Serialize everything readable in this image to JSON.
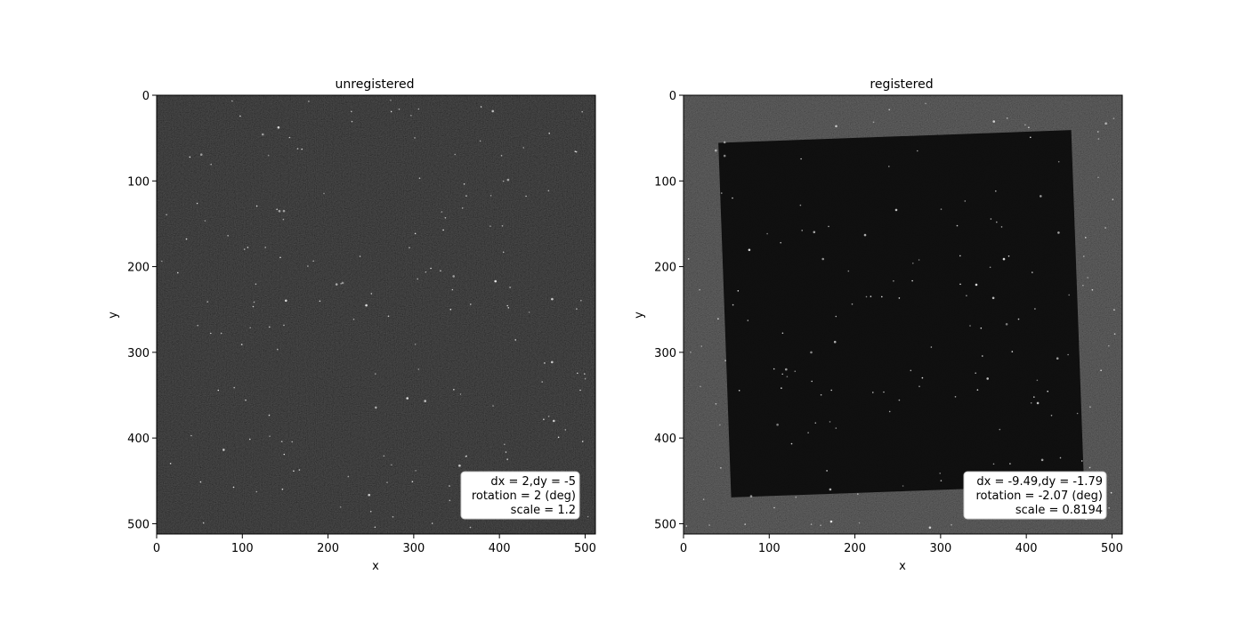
{
  "chart_data": [
    {
      "type": "heatmap",
      "title": "unregistered",
      "xlabel": "x",
      "ylabel": "y",
      "xlim": [
        0,
        512
      ],
      "ylim": [
        512,
        0
      ],
      "xticks": [
        0,
        100,
        200,
        300,
        400,
        500
      ],
      "yticks": [
        0,
        100,
        200,
        300,
        400,
        500
      ],
      "grid": false,
      "colormap": "gray",
      "annotation": [
        "dx = 2,dy = -5",
        "rotation = 2 (deg)",
        "scale = 1.2"
      ],
      "annotation_position": "bottom-right",
      "inner_frame": null
    },
    {
      "type": "heatmap",
      "title": "registered",
      "xlabel": "x",
      "ylabel": "y",
      "xlim": [
        0,
        512
      ],
      "ylim": [
        512,
        0
      ],
      "xticks": [
        0,
        100,
        200,
        300,
        400,
        500
      ],
      "yticks": [
        0,
        100,
        200,
        300,
        400,
        500
      ],
      "grid": false,
      "colormap": "gray",
      "annotation": [
        "dx = -9.49,dy = -1.79",
        "rotation = -2.07 (deg)",
        "scale = 0.8194"
      ],
      "annotation_position": "bottom-right",
      "inner_frame": {
        "x0": 48,
        "y0": 48,
        "x1": 460,
        "y1": 462,
        "rotation_deg": -2.07
      }
    }
  ],
  "colors": {
    "image_background": "#0b0b0b",
    "outer_region": "#1b1b1b",
    "inner_region": "#0a0a0a",
    "star": "#e6e6e6",
    "axis": "#000000"
  }
}
